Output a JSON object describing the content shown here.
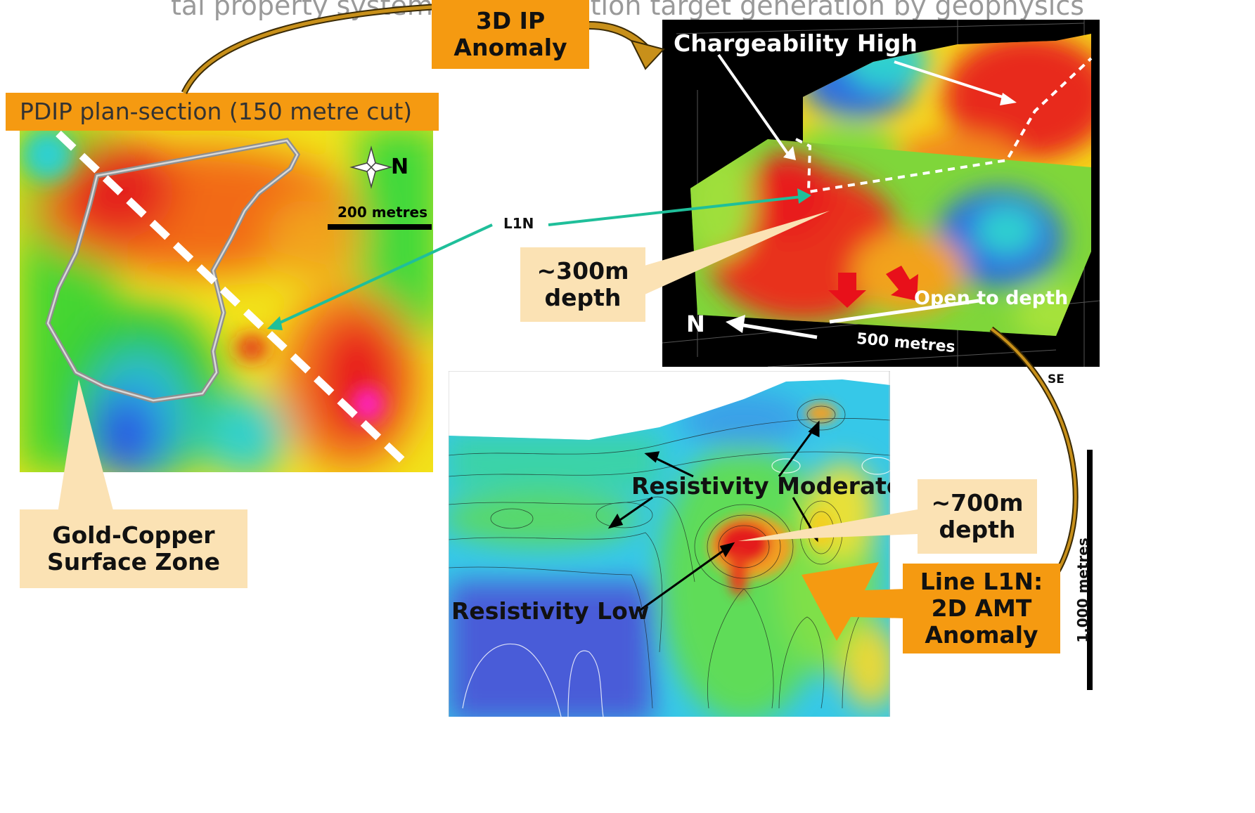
{
  "header": {
    "partial_title": "tal property systematic exploration target generation by geophysics"
  },
  "plan_map": {
    "title": "PDIP plan-section (150 metre  cut)",
    "north_label": "N",
    "scale_label": "200 metres"
  },
  "callouts": {
    "ip_anomaly": "3D IP\nAnomaly",
    "gold_copper": "Gold-Copper\nSurface Zone",
    "depth_300": "~300m\ndepth",
    "depth_700": "~700m\ndepth",
    "amt_anomaly": "Line L1N:\n2D AMT\nAnomaly"
  },
  "ip_model": {
    "chargeability_label": "Chargeability High",
    "open_depth_label": "Open to depth",
    "north_label": "N",
    "scale_label": "500 metres"
  },
  "line_labels": {
    "l1n": "L1N",
    "se": "SE"
  },
  "amt_section": {
    "resistivity_moderate": "Resistivity Moderate",
    "resistivity_low": "Resistivity Low",
    "vertical_scale": "1,000 metres"
  },
  "colors": {
    "callout_orange": "#f59a11",
    "callout_tan": "#fbe2b4",
    "arrow_teal": "#1fbf9a",
    "curve_brown": "#b8860b"
  }
}
